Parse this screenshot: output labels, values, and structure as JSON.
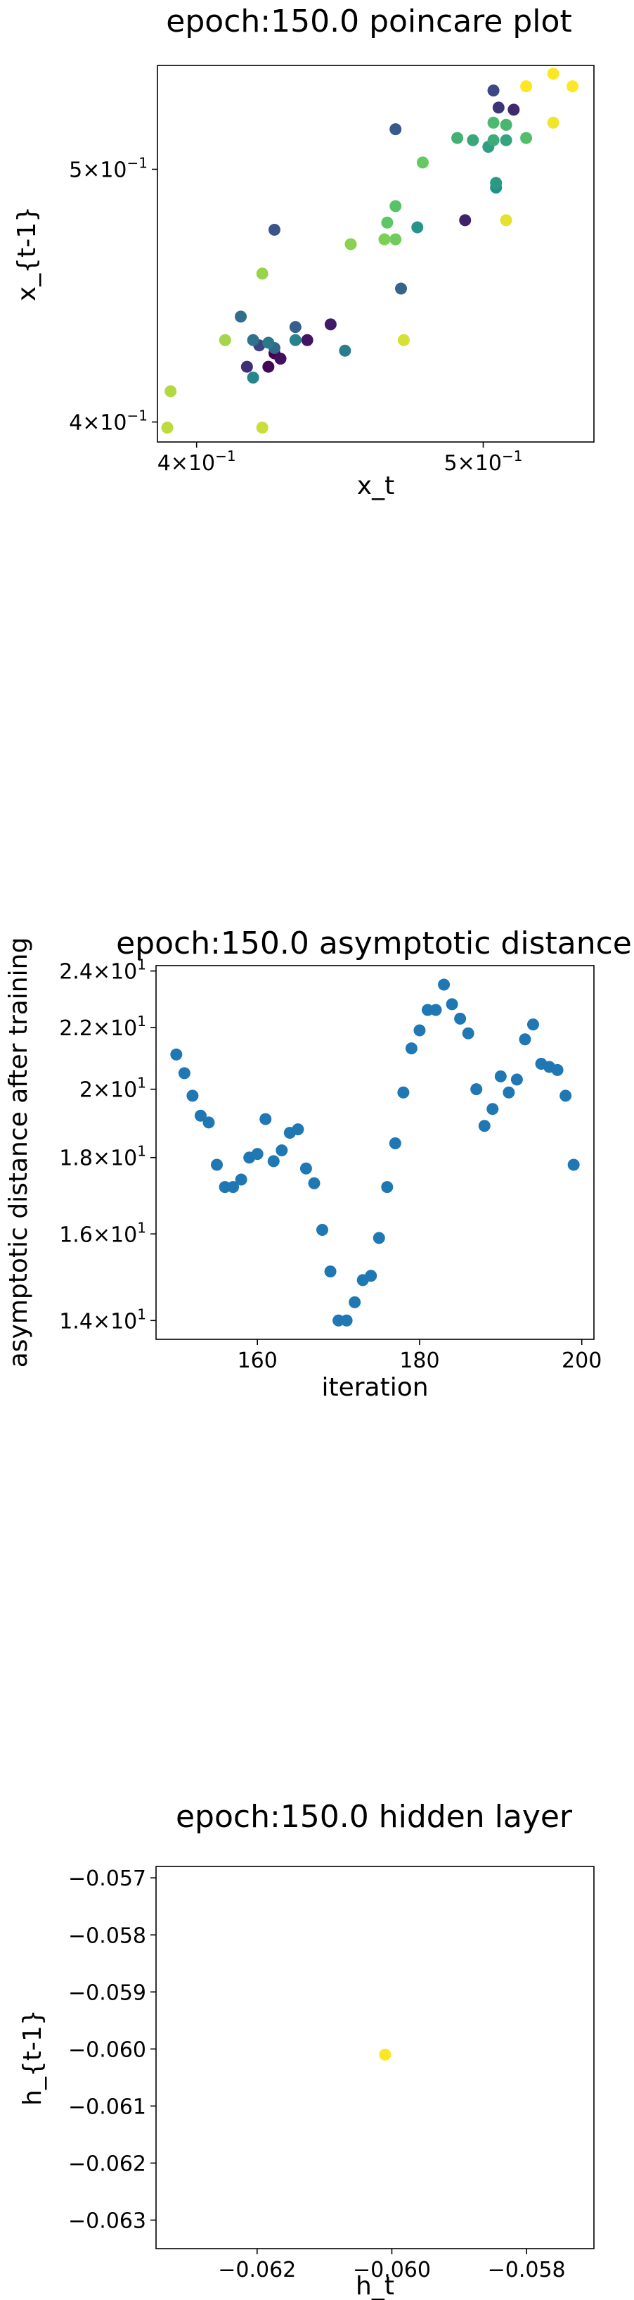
{
  "chart_data": [
    {
      "type": "scatter",
      "title": "epoch:150.0 poincare plot",
      "xlabel": "x_t",
      "ylabel": "x_{t-1}",
      "xscale": "log",
      "yscale": "log",
      "xlim": [
        0.388,
        0.545
      ],
      "ylim": [
        0.393,
        0.548
      ],
      "xticks": [
        {
          "value": 0.4,
          "base": "4",
          "exp": "−1"
        },
        {
          "value": 0.5,
          "base": "5",
          "exp": "−1"
        }
      ],
      "yticks": [
        {
          "value": 0.4,
          "base": "4",
          "exp": "−1"
        },
        {
          "value": 0.5,
          "base": "5",
          "exp": "−1"
        }
      ],
      "grid": false,
      "colormap": "viridis",
      "points": [
        {
          "x": 0.425,
          "y": 0.425,
          "c": 0.0
        },
        {
          "x": 0.423,
          "y": 0.42,
          "c": 0.02
        },
        {
          "x": 0.427,
          "y": 0.423,
          "c": 0.04
        },
        {
          "x": 0.436,
          "y": 0.43,
          "c": 0.06
        },
        {
          "x": 0.444,
          "y": 0.436,
          "c": 0.08
        },
        {
          "x": 0.493,
          "y": 0.478,
          "c": 0.1
        },
        {
          "x": 0.512,
          "y": 0.527,
          "c": 0.12
        },
        {
          "x": 0.506,
          "y": 0.528,
          "c": 0.16
        },
        {
          "x": 0.416,
          "y": 0.42,
          "c": 0.14
        },
        {
          "x": 0.42,
          "y": 0.428,
          "c": 0.2
        },
        {
          "x": 0.504,
          "y": 0.536,
          "c": 0.22
        },
        {
          "x": 0.425,
          "y": 0.474,
          "c": 0.26
        },
        {
          "x": 0.467,
          "y": 0.518,
          "c": 0.28
        },
        {
          "x": 0.432,
          "y": 0.435,
          "c": 0.3
        },
        {
          "x": 0.469,
          "y": 0.45,
          "c": 0.32
        },
        {
          "x": 0.425,
          "y": 0.427,
          "c": 0.34
        },
        {
          "x": 0.414,
          "y": 0.439,
          "c": 0.36
        },
        {
          "x": 0.418,
          "y": 0.43,
          "c": 0.38
        },
        {
          "x": 0.423,
          "y": 0.429,
          "c": 0.4
        },
        {
          "x": 0.449,
          "y": 0.426,
          "c": 0.42
        },
        {
          "x": 0.432,
          "y": 0.43,
          "c": 0.44
        },
        {
          "x": 0.418,
          "y": 0.416,
          "c": 0.46
        },
        {
          "x": 0.505,
          "y": 0.492,
          "c": 0.5
        },
        {
          "x": 0.475,
          "y": 0.475,
          "c": 0.52
        },
        {
          "x": 0.505,
          "y": 0.494,
          "c": 0.54
        },
        {
          "x": 0.502,
          "y": 0.51,
          "c": 0.56
        },
        {
          "x": 0.509,
          "y": 0.513,
          "c": 0.58
        },
        {
          "x": 0.496,
          "y": 0.513,
          "c": 0.6
        },
        {
          "x": 0.504,
          "y": 0.513,
          "c": 0.62
        },
        {
          "x": 0.49,
          "y": 0.514,
          "c": 0.64
        },
        {
          "x": 0.509,
          "y": 0.52,
          "c": 0.66
        },
        {
          "x": 0.504,
          "y": 0.521,
          "c": 0.68
        },
        {
          "x": 0.517,
          "y": 0.514,
          "c": 0.7
        },
        {
          "x": 0.467,
          "y": 0.484,
          "c": 0.72
        },
        {
          "x": 0.464,
          "y": 0.477,
          "c": 0.74
        },
        {
          "x": 0.477,
          "y": 0.503,
          "c": 0.76
        },
        {
          "x": 0.467,
          "y": 0.47,
          "c": 0.78
        },
        {
          "x": 0.463,
          "y": 0.47,
          "c": 0.8
        },
        {
          "x": 0.451,
          "y": 0.468,
          "c": 0.82
        },
        {
          "x": 0.421,
          "y": 0.456,
          "c": 0.84
        },
        {
          "x": 0.409,
          "y": 0.43,
          "c": 0.86
        },
        {
          "x": 0.392,
          "y": 0.411,
          "c": 0.88
        },
        {
          "x": 0.391,
          "y": 0.398,
          "c": 0.9
        },
        {
          "x": 0.421,
          "y": 0.398,
          "c": 0.92
        },
        {
          "x": 0.47,
          "y": 0.43,
          "c": 0.94
        },
        {
          "x": 0.509,
          "y": 0.478,
          "c": 0.96
        },
        {
          "x": 0.528,
          "y": 0.521,
          "c": 0.98
        },
        {
          "x": 0.528,
          "y": 0.544,
          "c": 1.0
        },
        {
          "x": 0.517,
          "y": 0.538,
          "c": 1.0
        },
        {
          "x": 0.536,
          "y": 0.538,
          "c": 1.0
        }
      ]
    },
    {
      "type": "scatter",
      "title": "epoch:150.0 asymptotic distance",
      "xlabel": "iteration",
      "ylabel": "asymptotic distance after training",
      "xscale": "linear",
      "yscale": "log",
      "xlim": [
        147.5,
        201.5
      ],
      "ylim": [
        13.6,
        24.2
      ],
      "xticks": [
        160,
        180,
        200
      ],
      "yticks": [
        {
          "value": 14,
          "base": "1.4",
          "exp": "1"
        },
        {
          "value": 16,
          "base": "1.6",
          "exp": "1"
        },
        {
          "value": 18,
          "base": "1.8",
          "exp": "1"
        },
        {
          "value": 20,
          "base": "2",
          "exp": "1"
        },
        {
          "value": 22,
          "base": "2.2",
          "exp": "1"
        },
        {
          "value": 24,
          "base": "2.4",
          "exp": "1"
        }
      ],
      "grid": false,
      "color": "#1f77b4",
      "x": [
        150,
        151,
        152,
        153,
        154,
        155,
        156,
        157,
        158,
        159,
        160,
        161,
        162,
        163,
        164,
        165,
        166,
        167,
        168,
        169,
        170,
        171,
        172,
        173,
        174,
        175,
        176,
        177,
        178,
        179,
        180,
        181,
        182,
        183,
        184,
        185,
        186,
        187,
        188,
        189,
        190,
        191,
        192,
        193,
        194,
        195,
        196,
        197,
        198,
        199
      ],
      "y": [
        21.1,
        20.5,
        19.8,
        19.2,
        19.0,
        17.8,
        17.2,
        17.2,
        17.4,
        18.0,
        18.1,
        19.1,
        17.9,
        18.2,
        18.7,
        18.8,
        17.7,
        17.3,
        16.1,
        15.1,
        14.0,
        14.0,
        14.4,
        14.9,
        15.0,
        15.9,
        17.2,
        18.4,
        19.9,
        21.3,
        21.9,
        22.6,
        22.6,
        23.5,
        22.8,
        22.3,
        21.8,
        20.0,
        18.9,
        19.4,
        20.4,
        19.9,
        20.3,
        21.6,
        22.1,
        20.8,
        20.7,
        20.6,
        19.8,
        17.8
      ]
    },
    {
      "type": "scatter",
      "title": "epoch:150.0 hidden layer",
      "xlabel": "h_t",
      "ylabel": "h_{t-1}",
      "xscale": "linear",
      "yscale": "linear",
      "xlim": [
        -0.0635,
        -0.057
      ],
      "ylim": [
        -0.0635,
        -0.0568
      ],
      "xticks": [
        {
          "value": -0.062,
          "label": "−0.062"
        },
        {
          "value": -0.06,
          "label": "−0.060"
        },
        {
          "value": -0.058,
          "label": "−0.058"
        }
      ],
      "yticks": [
        {
          "value": -0.057,
          "label": "−0.057"
        },
        {
          "value": -0.058,
          "label": "−0.058"
        },
        {
          "value": -0.059,
          "label": "−0.059"
        },
        {
          "value": -0.06,
          "label": "−0.060"
        },
        {
          "value": -0.061,
          "label": "−0.061"
        },
        {
          "value": -0.062,
          "label": "−0.062"
        },
        {
          "value": -0.063,
          "label": "−0.063"
        }
      ],
      "grid": false,
      "points": [
        {
          "x": -0.0601,
          "y": -0.0601,
          "color": "#fde725"
        }
      ]
    }
  ]
}
